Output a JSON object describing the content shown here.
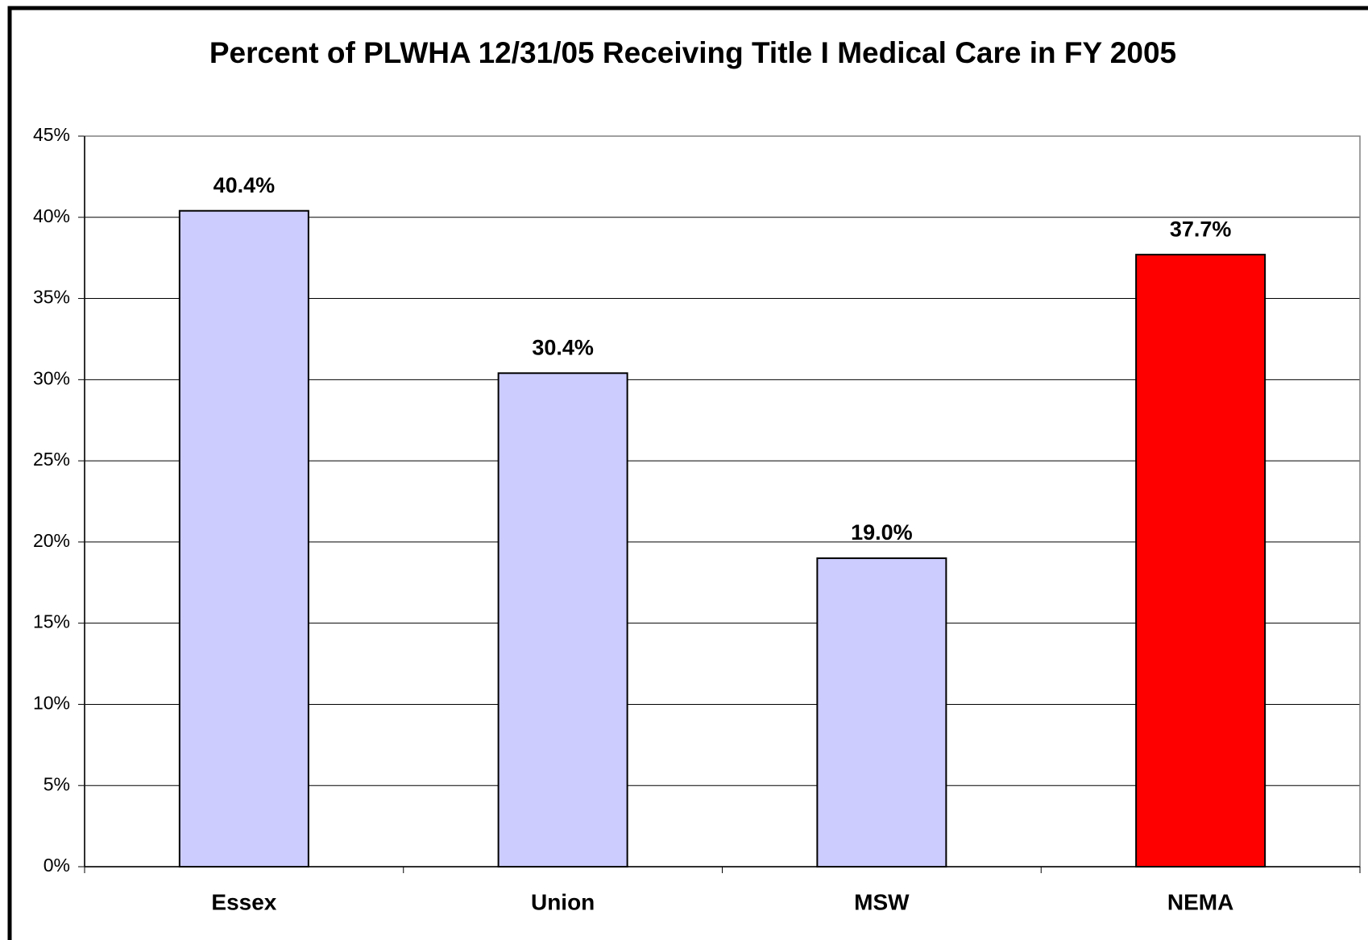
{
  "chart_data": {
    "type": "bar",
    "title": "Percent of PLWHA 12/31/05 Receiving Title I Medical Care in FY 2005",
    "categories": [
      "Essex",
      "Union",
      "MSW",
      "NEMA"
    ],
    "values": [
      40.4,
      30.4,
      19.0,
      37.7
    ],
    "value_labels": [
      "40.4%",
      "30.4%",
      "19.0%",
      "37.7%"
    ],
    "colors": [
      "#ccccff",
      "#ccccff",
      "#ccccff",
      "#ff0000"
    ],
    "ylim": [
      0,
      45
    ],
    "yticks": [
      {
        "value": 0,
        "label": "0%"
      },
      {
        "value": 5,
        "label": "5%"
      },
      {
        "value": 10,
        "label": "10%"
      },
      {
        "value": 15,
        "label": "15%"
      },
      {
        "value": 20,
        "label": "20%"
      },
      {
        "value": 25,
        "label": "25%"
      },
      {
        "value": 30,
        "label": "30%"
      },
      {
        "value": 35,
        "label": "35%"
      },
      {
        "value": 40,
        "label": "40%"
      },
      {
        "value": 45,
        "label": "45%"
      }
    ],
    "grid": true
  }
}
